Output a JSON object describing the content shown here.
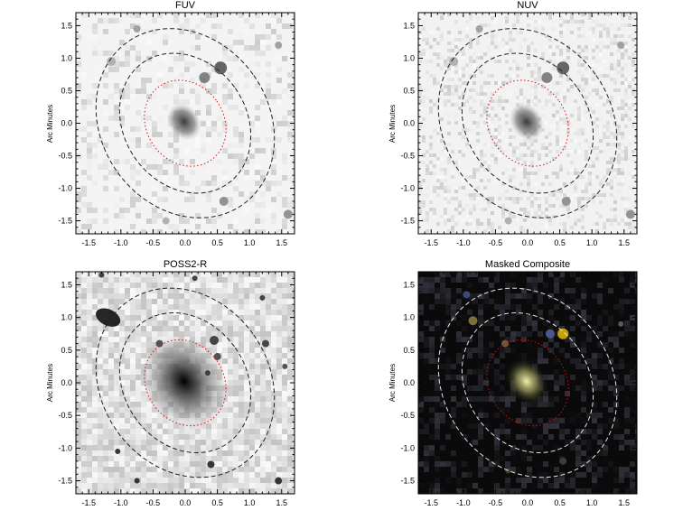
{
  "panels": [
    {
      "id": "fuv",
      "title": "FUV",
      "ylabel": "Arc Minutes",
      "style": "fuv",
      "background": "#f4f4f4",
      "ellipse_colors": {
        "inner": "#e01010",
        "outer": "#222222"
      }
    },
    {
      "id": "nuv",
      "title": "NUV",
      "ylabel": "Arc Minutes",
      "style": "nuv",
      "background": "#f2f2f2",
      "ellipse_colors": {
        "inner": "#e01010",
        "outer": "#222222"
      }
    },
    {
      "id": "poss2r",
      "title": "POSS2-R",
      "ylabel": "Arc Minutes",
      "style": "poss",
      "background": "#dcdcdc",
      "ellipse_colors": {
        "inner": "#e01010",
        "outer": "#222222"
      }
    },
    {
      "id": "composite",
      "title": "Masked Composite",
      "ylabel": "Arc Minutes",
      "style": "composite",
      "background": "#0a0a0a",
      "ellipse_colors": {
        "inner": "#d01010",
        "outer": "#e6e6e6"
      }
    }
  ],
  "axes": {
    "x_ticks": [
      "-1.5",
      "-1.0",
      "-0.5",
      "0.0",
      "0.5",
      "1.0",
      "1.5"
    ],
    "y_ticks": [
      "1.5",
      "1.0",
      "0.5",
      "0.0",
      "-0.5",
      "-1.0",
      "-1.5"
    ],
    "range": [
      -1.7,
      1.7
    ]
  }
}
